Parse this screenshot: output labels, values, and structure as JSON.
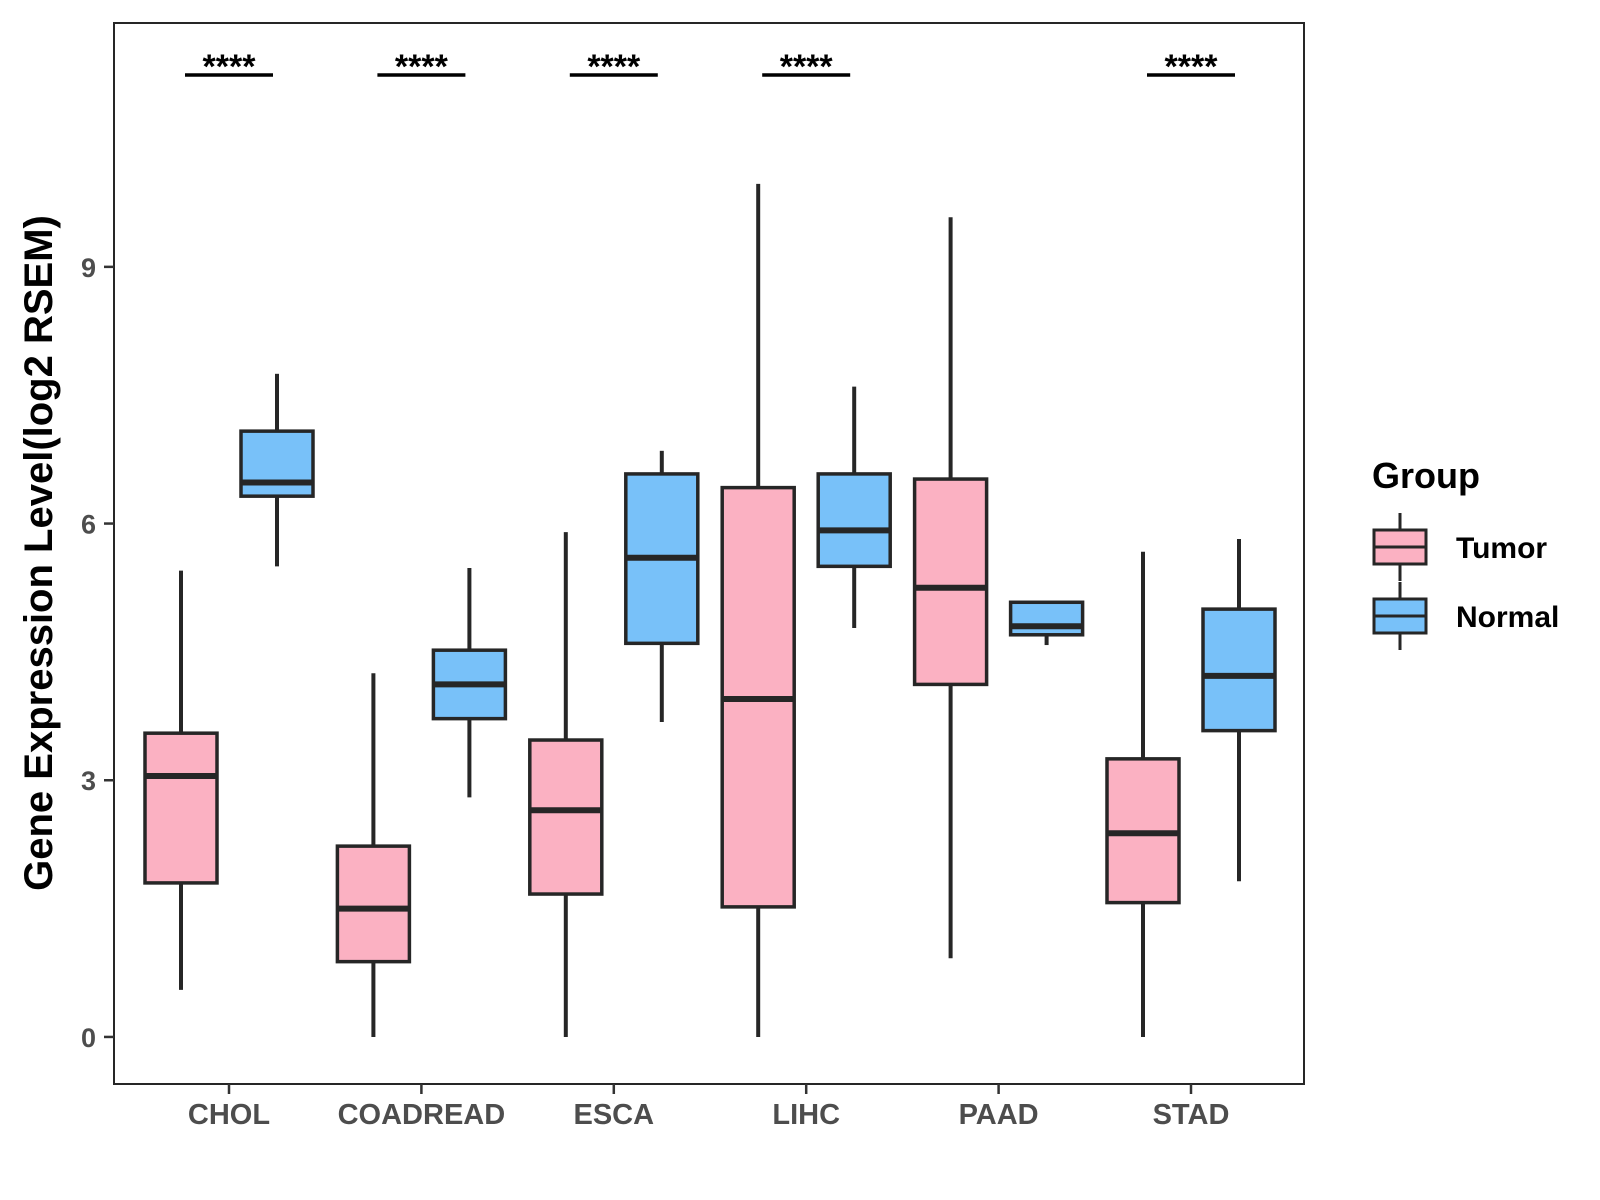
{
  "chart_data": {
    "type": "boxplot",
    "title": "",
    "xlabel": "",
    "ylabel": "Gene Expression Level(log2 RSEM)",
    "ylim": [
      -0.55,
      11.85
    ],
    "yticks": [
      0,
      3,
      6,
      9
    ],
    "grid": false,
    "legend": {
      "title": "Group",
      "placement": "right",
      "entries": [
        "Tumor",
        "Normal"
      ]
    },
    "colors": {
      "Tumor": "#FBB1C2",
      "Normal": "#78C1F9",
      "outline": "#262626"
    },
    "categories": [
      "CHOL",
      "COADREAD",
      "ESCA",
      "LIHC",
      "PAAD",
      "STAD"
    ],
    "series": [
      {
        "name": "Tumor",
        "boxes": [
          {
            "min": 0.55,
            "q1": 1.8,
            "median": 3.05,
            "q3": 3.55,
            "max": 5.45
          },
          {
            "min": 0.0,
            "q1": 0.88,
            "median": 1.5,
            "q3": 2.23,
            "max": 4.25
          },
          {
            "min": 0.0,
            "q1": 1.67,
            "median": 2.65,
            "q3": 3.47,
            "max": 5.9
          },
          {
            "min": 0.0,
            "q1": 1.52,
            "median": 3.95,
            "q3": 6.42,
            "max": 9.97
          },
          {
            "min": 0.92,
            "q1": 4.12,
            "median": 5.25,
            "q3": 6.52,
            "max": 9.58
          },
          {
            "min": 0.0,
            "q1": 1.57,
            "median": 2.38,
            "q3": 3.25,
            "max": 5.67
          }
        ]
      },
      {
        "name": "Normal",
        "boxes": [
          {
            "min": 5.5,
            "q1": 6.32,
            "median": 6.48,
            "q3": 7.08,
            "max": 7.75
          },
          {
            "min": 2.8,
            "q1": 3.72,
            "median": 4.12,
            "q3": 4.52,
            "max": 5.48
          },
          {
            "min": 3.68,
            "q1": 4.6,
            "median": 5.6,
            "q3": 6.58,
            "max": 6.85
          },
          {
            "min": 4.78,
            "q1": 5.5,
            "median": 5.92,
            "q3": 6.58,
            "max": 7.6
          },
          {
            "min": 4.58,
            "q1": 4.7,
            "median": 4.8,
            "q3": 5.08,
            "max": 5.08
          },
          {
            "min": 1.82,
            "q1": 3.58,
            "median": 4.22,
            "q3": 5.0,
            "max": 5.82
          }
        ]
      }
    ],
    "significance": [
      {
        "category": "CHOL",
        "label": "****"
      },
      {
        "category": "COADREAD",
        "label": "****"
      },
      {
        "category": "ESCA",
        "label": "****"
      },
      {
        "category": "LIHC",
        "label": "****"
      },
      {
        "category": "PAAD",
        "label": ""
      },
      {
        "category": "STAD",
        "label": "****"
      }
    ]
  }
}
